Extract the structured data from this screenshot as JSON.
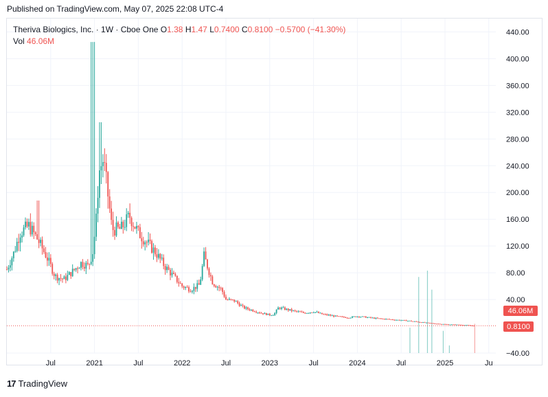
{
  "header": {
    "published": "Published on TradingView.com, May 07, 2025 22:08 UTC-4"
  },
  "legend": {
    "symbol": "Theriva Biologics, Inc. · 1W · Cboe One",
    "o_label": "O",
    "o_value": "1.38",
    "h_label": "H",
    "h_value": "1.47",
    "l_label": "L",
    "l_value": "0.7400",
    "c_label": "C",
    "c_value": "0.8100",
    "change": "−0.5700 (−41.30%)",
    "vol_label": "Vol",
    "vol_value": "46.06M"
  },
  "brand": {
    "logo": "17",
    "name": "TradingView"
  },
  "colors": {
    "up": "#26a69a",
    "down": "#ef5350",
    "grid": "#f0f3fa",
    "text": "#131722"
  },
  "chart_data": {
    "type": "candlestick",
    "interval": "1W",
    "y_axis": {
      "ticks": [
        "440.00",
        "400.00",
        "360.00",
        "320.00",
        "280.00",
        "240.00",
        "200.00",
        "160.00",
        "120.00",
        "80.00",
        "40.00",
        "−40.00"
      ],
      "tick_values": [
        440,
        400,
        360,
        320,
        280,
        240,
        200,
        160,
        120,
        80,
        40,
        -40
      ],
      "range": [
        -40,
        460
      ],
      "last_price": "0.8100",
      "last_volume": "46.06M"
    },
    "x_axis": {
      "labels": [
        "Jul",
        "2021",
        "Jul",
        "2022",
        "Jul",
        "2023",
        "Jul",
        "2024",
        "Jul",
        "2025",
        "Ju"
      ],
      "label_dates": [
        2020.5,
        2021.0,
        2021.5,
        2022.0,
        2022.5,
        2023.0,
        2023.5,
        2024.0,
        2024.5,
        2025.0,
        2025.5
      ],
      "range": [
        2020.0,
        2025.58
      ]
    },
    "price_path": {
      "dates": [
        2020.0,
        2020.08,
        2020.15,
        2020.25,
        2020.35,
        2020.45,
        2020.55,
        2020.65,
        2020.75,
        2020.85,
        2020.93,
        2020.98,
        2021.02,
        2021.05,
        2021.1,
        2021.15,
        2021.2,
        2021.3,
        2021.4,
        2021.5,
        2021.6,
        2021.7,
        2021.8,
        2021.9,
        2022.0,
        2022.1,
        2022.2,
        2022.25,
        2022.35,
        2022.45,
        2022.5,
        2022.6,
        2022.7,
        2022.8,
        2022.9,
        2023.0,
        2023.05,
        2023.1,
        2023.2,
        2023.3,
        2023.4,
        2023.5,
        2023.6,
        2023.7,
        2023.8,
        2023.9,
        2024.0,
        2024.2,
        2024.4,
        2024.6,
        2024.8,
        2025.0,
        2025.2,
        2025.34
      ],
      "closes": [
        85,
        110,
        140,
        150,
        130,
        105,
        75,
        70,
        82,
        95,
        90,
        110,
        160,
        230,
        250,
        200,
        145,
        145,
        165,
        140,
        125,
        110,
        90,
        75,
        60,
        55,
        62,
        105,
        65,
        55,
        40,
        38,
        28,
        24,
        20,
        17,
        18,
        28,
        25,
        22,
        20,
        22,
        18,
        16,
        14,
        13,
        15,
        12,
        10,
        8,
        5,
        3,
        2,
        0.81
      ]
    },
    "volume": {
      "dates": [
        2024.6,
        2024.7,
        2024.8,
        2024.85,
        2024.98,
        2025.05,
        2025.34
      ],
      "values_M": [
        40,
        120,
        130,
        100,
        35,
        12,
        46.06
      ]
    }
  }
}
